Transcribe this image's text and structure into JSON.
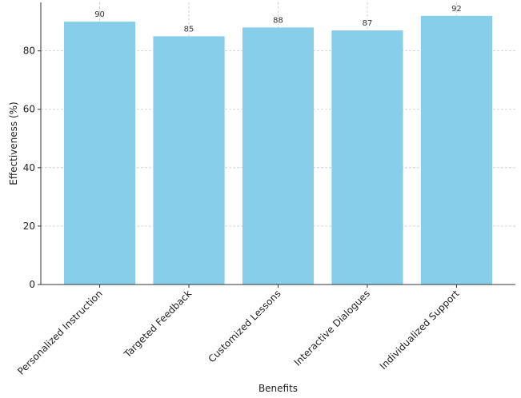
{
  "chart_data": {
    "type": "bar",
    "title": "",
    "xlabel": "Benefits",
    "ylabel": "Effectiveness (%)",
    "categories": [
      "Personalized Instruction",
      "Targeted Feedback",
      "Customized Lessons",
      "Interactive Dialogues",
      "Individualized Support"
    ],
    "values": [
      90,
      85,
      88,
      87,
      92
    ],
    "ylim": [
      0,
      96.6
    ],
    "yticks": [
      0,
      20,
      40,
      60,
      80
    ],
    "grid": true,
    "legend": "none",
    "colors": {
      "bar": "#87CEEB",
      "axis": "#333333",
      "grid": "#cccccc",
      "text": "#222222"
    }
  }
}
